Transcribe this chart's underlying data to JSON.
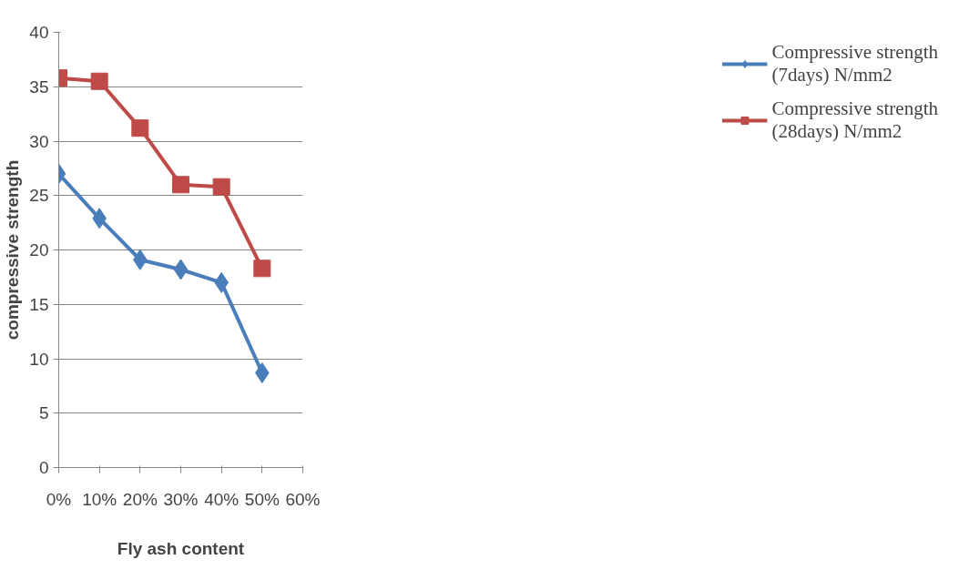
{
  "chart_data": {
    "type": "line",
    "xlabel": "Fly ash content",
    "ylabel": "compressive strength",
    "x": [
      0,
      10,
      20,
      30,
      40,
      50
    ],
    "xlim": [
      0,
      60
    ],
    "xticks": [
      {
        "value": 0,
        "label": "0%"
      },
      {
        "value": 10,
        "label": "10%"
      },
      {
        "value": 20,
        "label": "20%"
      },
      {
        "value": 30,
        "label": "30%"
      },
      {
        "value": 40,
        "label": "40%"
      },
      {
        "value": 50,
        "label": "50%"
      },
      {
        "value": 60,
        "label": "60%"
      }
    ],
    "ylim": [
      0,
      40
    ],
    "yticks": [
      0,
      5,
      10,
      15,
      20,
      25,
      30,
      35,
      40
    ],
    "grid": "y",
    "legend": "right",
    "line_style": "solid",
    "series": [
      {
        "name": "Compressive strength (7days) N/mm2",
        "color": "#4a7ebb",
        "marker": "diamond",
        "values": [
          27.0,
          22.9,
          19.1,
          18.2,
          17.0,
          8.7
        ]
      },
      {
        "name": "Compressive strength (28days) N/mm2",
        "color": "#be4b48",
        "marker": "square",
        "values": [
          35.8,
          35.5,
          31.2,
          26.0,
          25.8,
          18.3
        ]
      }
    ]
  }
}
